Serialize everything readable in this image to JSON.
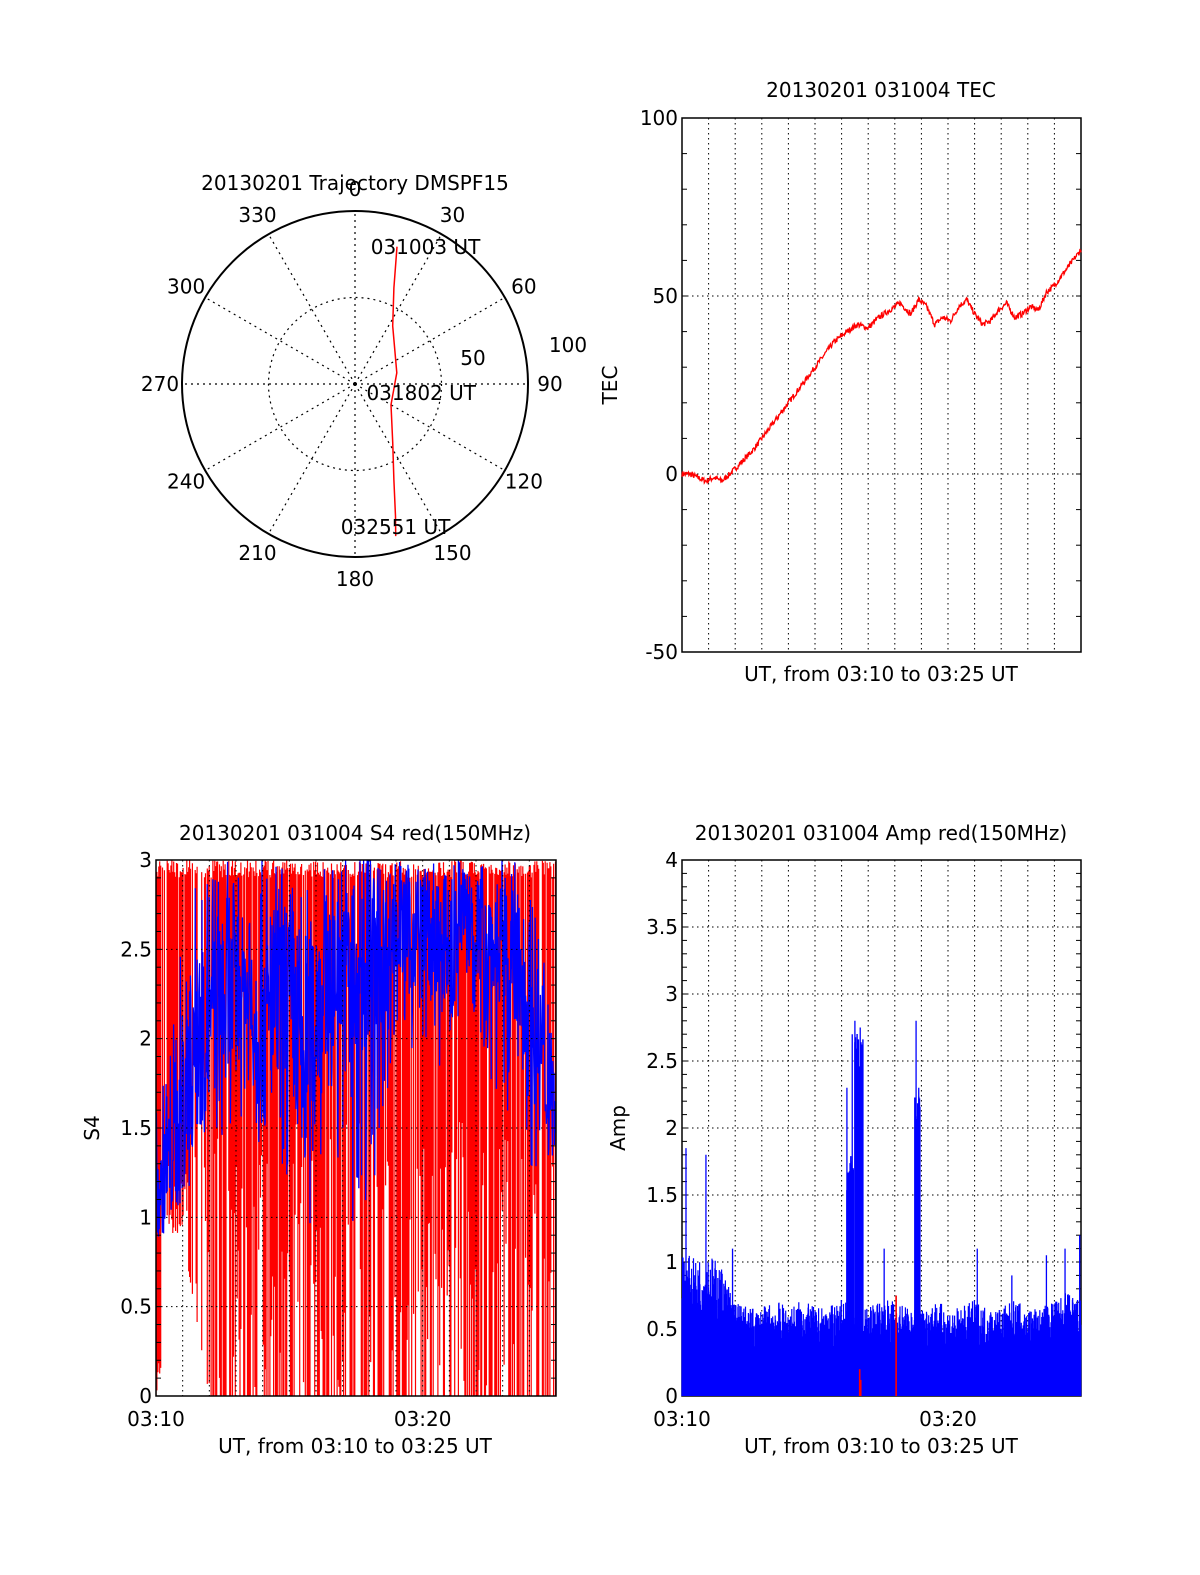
{
  "chart_data": [
    {
      "type": "polar",
      "title": "20130201 Trajectory DMSPF15",
      "angle_labels": [
        "0",
        "30",
        "60",
        "90",
        "120",
        "150",
        "180",
        "210",
        "240",
        "270",
        "300",
        "330"
      ],
      "radius_labels": [
        "50",
        "100"
      ],
      "rlim": [
        0,
        100
      ],
      "grid": true,
      "series": [
        {
          "color": "#ff0000",
          "points": [
            {
              "az": 17,
              "r": 83
            },
            {
              "az": 22,
              "r": 60
            },
            {
              "az": 33,
              "r": 40
            },
            {
              "az": 75,
              "r": 25
            },
            {
              "az": 120,
              "r": 24
            },
            {
              "az": 147,
              "r": 40
            },
            {
              "az": 158,
              "r": 60
            },
            {
              "az": 163,
              "r": 80
            },
            {
              "az": 165,
              "r": 91
            }
          ]
        }
      ],
      "annotations": [
        {
          "text": "031003 UT",
          "az": 24,
          "r": 86
        },
        {
          "text": "031802 UT",
          "az": 100,
          "r": 33
        },
        {
          "text": "032551 UT",
          "az": 168,
          "r": 85
        }
      ]
    },
    {
      "type": "line",
      "title": "20130201 031004 TEC",
      "xlabel": "UT, from 03:10 to 03:25 UT",
      "ylabel": "TEC",
      "xlim": [
        0,
        15
      ],
      "ylim": [
        -50,
        100
      ],
      "yticks": [
        "-50",
        "0",
        "50",
        "100"
      ],
      "grid": true,
      "series": [
        {
          "color": "#ff0000",
          "x": [
            0,
            0.3,
            0.6,
            0.9,
            1.2,
            1.5,
            1.8,
            2.2,
            2.7,
            3.2,
            3.7,
            4.2,
            4.7,
            5.2,
            5.7,
            6.2,
            6.6,
            7.0,
            7.4,
            7.8,
            8.2,
            8.6,
            8.9,
            9.2,
            9.5,
            9.8,
            10.1,
            10.4,
            10.7,
            11.0,
            11.3,
            11.6,
            11.9,
            12.2,
            12.5,
            12.8,
            13.1,
            13.4,
            13.7,
            14.0,
            14.3,
            14.6,
            15.0
          ],
          "y": [
            0,
            0,
            -1,
            -2,
            -1,
            -2,
            0,
            3,
            7,
            12,
            17,
            22,
            27,
            32,
            37,
            40,
            42,
            41,
            44,
            46,
            48,
            45,
            49,
            47,
            42,
            44,
            43,
            47,
            49,
            45,
            42,
            43,
            46,
            48,
            44,
            45,
            47,
            46,
            51,
            53,
            56,
            59,
            63
          ]
        }
      ]
    },
    {
      "type": "line",
      "title": "20130201 031004 S4 red(150MHz)",
      "xlabel": "UT, from 03:10 to 03:25 UT",
      "ylabel": "S4",
      "xlim": [
        0,
        15
      ],
      "xticks": [
        {
          "value": 0,
          "label": "03:10"
        },
        {
          "value": 10,
          "label": "03:20"
        }
      ],
      "ylim": [
        0,
        3
      ],
      "yticks": [
        "0",
        "0.5",
        "1",
        "1.5",
        "2",
        "2.5",
        "3"
      ],
      "grid": true,
      "series": [
        {
          "color": "#ff0000",
          "style": "dense-spikes",
          "x": [
            0,
            1,
            2,
            3,
            4,
            5,
            6,
            7,
            8,
            9,
            10,
            11,
            12,
            13,
            14,
            15
          ],
          "y_low": [
            0,
            0.9,
            0,
            0,
            0,
            0,
            0,
            0,
            0,
            0,
            0,
            0,
            0,
            0,
            0,
            0
          ],
          "y_high": [
            3,
            3,
            3,
            3,
            3,
            3,
            3,
            3,
            3,
            3,
            3,
            3,
            3,
            3,
            3,
            3
          ]
        },
        {
          "color": "#0000ff",
          "style": "noisy-line",
          "x": [
            0,
            0.5,
            1,
            1.5,
            2,
            2.5,
            3,
            3.5,
            4,
            4.5,
            5,
            5.5,
            6,
            6.5,
            7,
            7.5,
            8,
            8.5,
            9,
            9.5,
            10,
            10.5,
            11,
            11.5,
            12,
            12.5,
            13,
            13.5,
            14,
            14.5,
            15
          ],
          "y": [
            1.1,
            1.2,
            1.6,
            1.9,
            2.0,
            2.1,
            2.3,
            2.2,
            2.0,
            2.2,
            2.3,
            1.9,
            2.2,
            2.4,
            2.5,
            2.4,
            2.6,
            2.5,
            2.7,
            2.6,
            2.7,
            2.5,
            2.6,
            2.8,
            2.7,
            2.6,
            2.5,
            2.4,
            2.2,
            1.8,
            1.6
          ],
          "y_min": [
            0.8,
            1.0,
            0.9,
            1.4,
            1.5,
            1.4,
            1.6,
            1.5,
            1.3,
            1.4,
            1.1,
            0.6,
            1.2,
            1.5,
            1.2,
            0.5,
            0.9,
            1.6,
            1.9,
            1.8,
            2.0,
            1.8,
            1.9,
            2.1,
            2.0,
            1.8,
            1.6,
            1.4,
            1.3,
            1.2,
            1.3
          ],
          "y_max": [
            1.6,
            1.9,
            2.6,
            2.9,
            3.0,
            3.0,
            3.0,
            3.0,
            3.0,
            3.0,
            3.0,
            2.9,
            3.0,
            3.0,
            3.0,
            3.0,
            3.0,
            3.0,
            3.0,
            3.0,
            3.0,
            3.0,
            3.0,
            3.0,
            3.0,
            3.0,
            3.0,
            3.0,
            2.9,
            2.6,
            2.2
          ]
        }
      ]
    },
    {
      "type": "line",
      "title": "20130201 031004 Amp red(150MHz)",
      "xlabel": "UT, from 03:10 to 03:25 UT",
      "ylabel": "Amp",
      "xlim": [
        0,
        15
      ],
      "xticks": [
        {
          "value": 0,
          "label": "03:10"
        },
        {
          "value": 10,
          "label": "03:20"
        }
      ],
      "ylim": [
        0,
        4
      ],
      "yticks": [
        "0",
        "0.5",
        "1",
        "1.5",
        "2",
        "2.5",
        "3",
        "3.5",
        "4"
      ],
      "grid": true,
      "series": [
        {
          "color": "#0000ff",
          "style": "filled-noise",
          "x": [
            0,
            0.5,
            1,
            1.5,
            2,
            2.5,
            3,
            3.5,
            4,
            4.5,
            5,
            5.5,
            6,
            6.5,
            7,
            7.5,
            8,
            8.5,
            9,
            9.5,
            10,
            10.5,
            11,
            11.5,
            12,
            12.5,
            13,
            13.5,
            14,
            14.5,
            15
          ],
          "y": [
            0.9,
            0.85,
            0.9,
            0.8,
            0.6,
            0.55,
            0.55,
            0.6,
            0.55,
            0.6,
            0.55,
            0.55,
            0.6,
            0.55,
            0.55,
            0.6,
            0.6,
            0.55,
            0.55,
            0.6,
            0.55,
            0.55,
            0.6,
            0.55,
            0.55,
            0.6,
            0.55,
            0.55,
            0.6,
            0.65,
            0.6
          ],
          "spikes": [
            {
              "x": 0.15,
              "y": 1.85
            },
            {
              "x": 0.9,
              "y": 1.8
            },
            {
              "x": 1.9,
              "y": 1.1
            },
            {
              "x": 6.2,
              "y": 2.3
            },
            {
              "x": 6.4,
              "y": 2.7
            },
            {
              "x": 6.5,
              "y": 2.8
            },
            {
              "x": 6.7,
              "y": 2.75
            },
            {
              "x": 7.6,
              "y": 1.1
            },
            {
              "x": 8.8,
              "y": 2.8
            },
            {
              "x": 8.9,
              "y": 2.3
            },
            {
              "x": 11.1,
              "y": 1.1
            },
            {
              "x": 12.4,
              "y": 0.9
            },
            {
              "x": 13.7,
              "y": 1.05
            },
            {
              "x": 14.4,
              "y": 1.1
            },
            {
              "x": 14.95,
              "y": 1.2
            }
          ],
          "blocks": [
            {
              "x0": 6.2,
              "x1": 6.45,
              "y": 1.8
            },
            {
              "x0": 6.5,
              "x1": 6.8,
              "y": 2.75
            },
            {
              "x0": 8.75,
              "x1": 8.95,
              "y": 2.25
            }
          ]
        },
        {
          "color": "#ff0000",
          "style": "spikes",
          "spikes": [
            {
              "x": 6.68,
              "y": 0.2
            },
            {
              "x": 6.72,
              "y": 0.12
            },
            {
              "x": 8.05,
              "y": 0.75
            }
          ]
        }
      ]
    }
  ]
}
